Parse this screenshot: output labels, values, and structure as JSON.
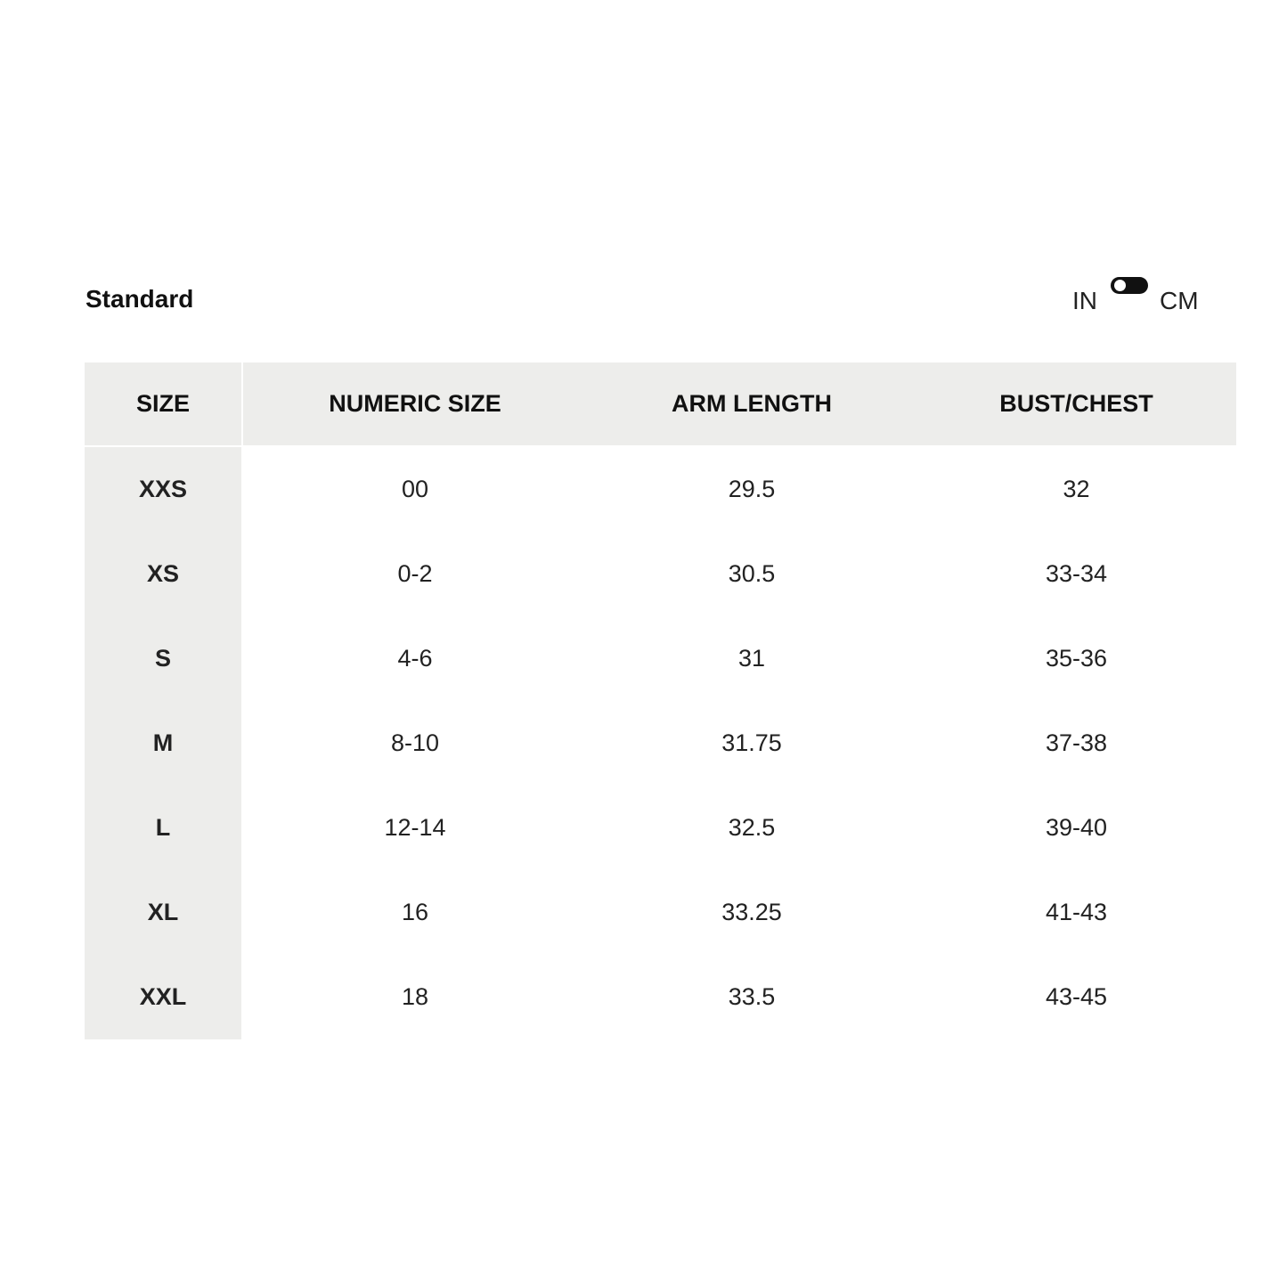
{
  "title": "Standard",
  "units": {
    "left": "IN",
    "right": "CM",
    "selected": "IN"
  },
  "table": {
    "headers": [
      "SIZE",
      "NUMERIC SIZE",
      "ARM LENGTH",
      "BUST/CHEST"
    ],
    "rows": [
      [
        "XXS",
        "00",
        "29.5",
        "32"
      ],
      [
        "XS",
        "0-2",
        "30.5",
        "33-34"
      ],
      [
        "S",
        "4-6",
        "31",
        "35-36"
      ],
      [
        "M",
        "8-10",
        "31.75",
        "37-38"
      ],
      [
        "L",
        "12-14",
        "32.5",
        "39-40"
      ],
      [
        "XL",
        "16",
        "33.25",
        "41-43"
      ],
      [
        "XXL",
        "18",
        "33.5",
        "43-45"
      ]
    ]
  }
}
